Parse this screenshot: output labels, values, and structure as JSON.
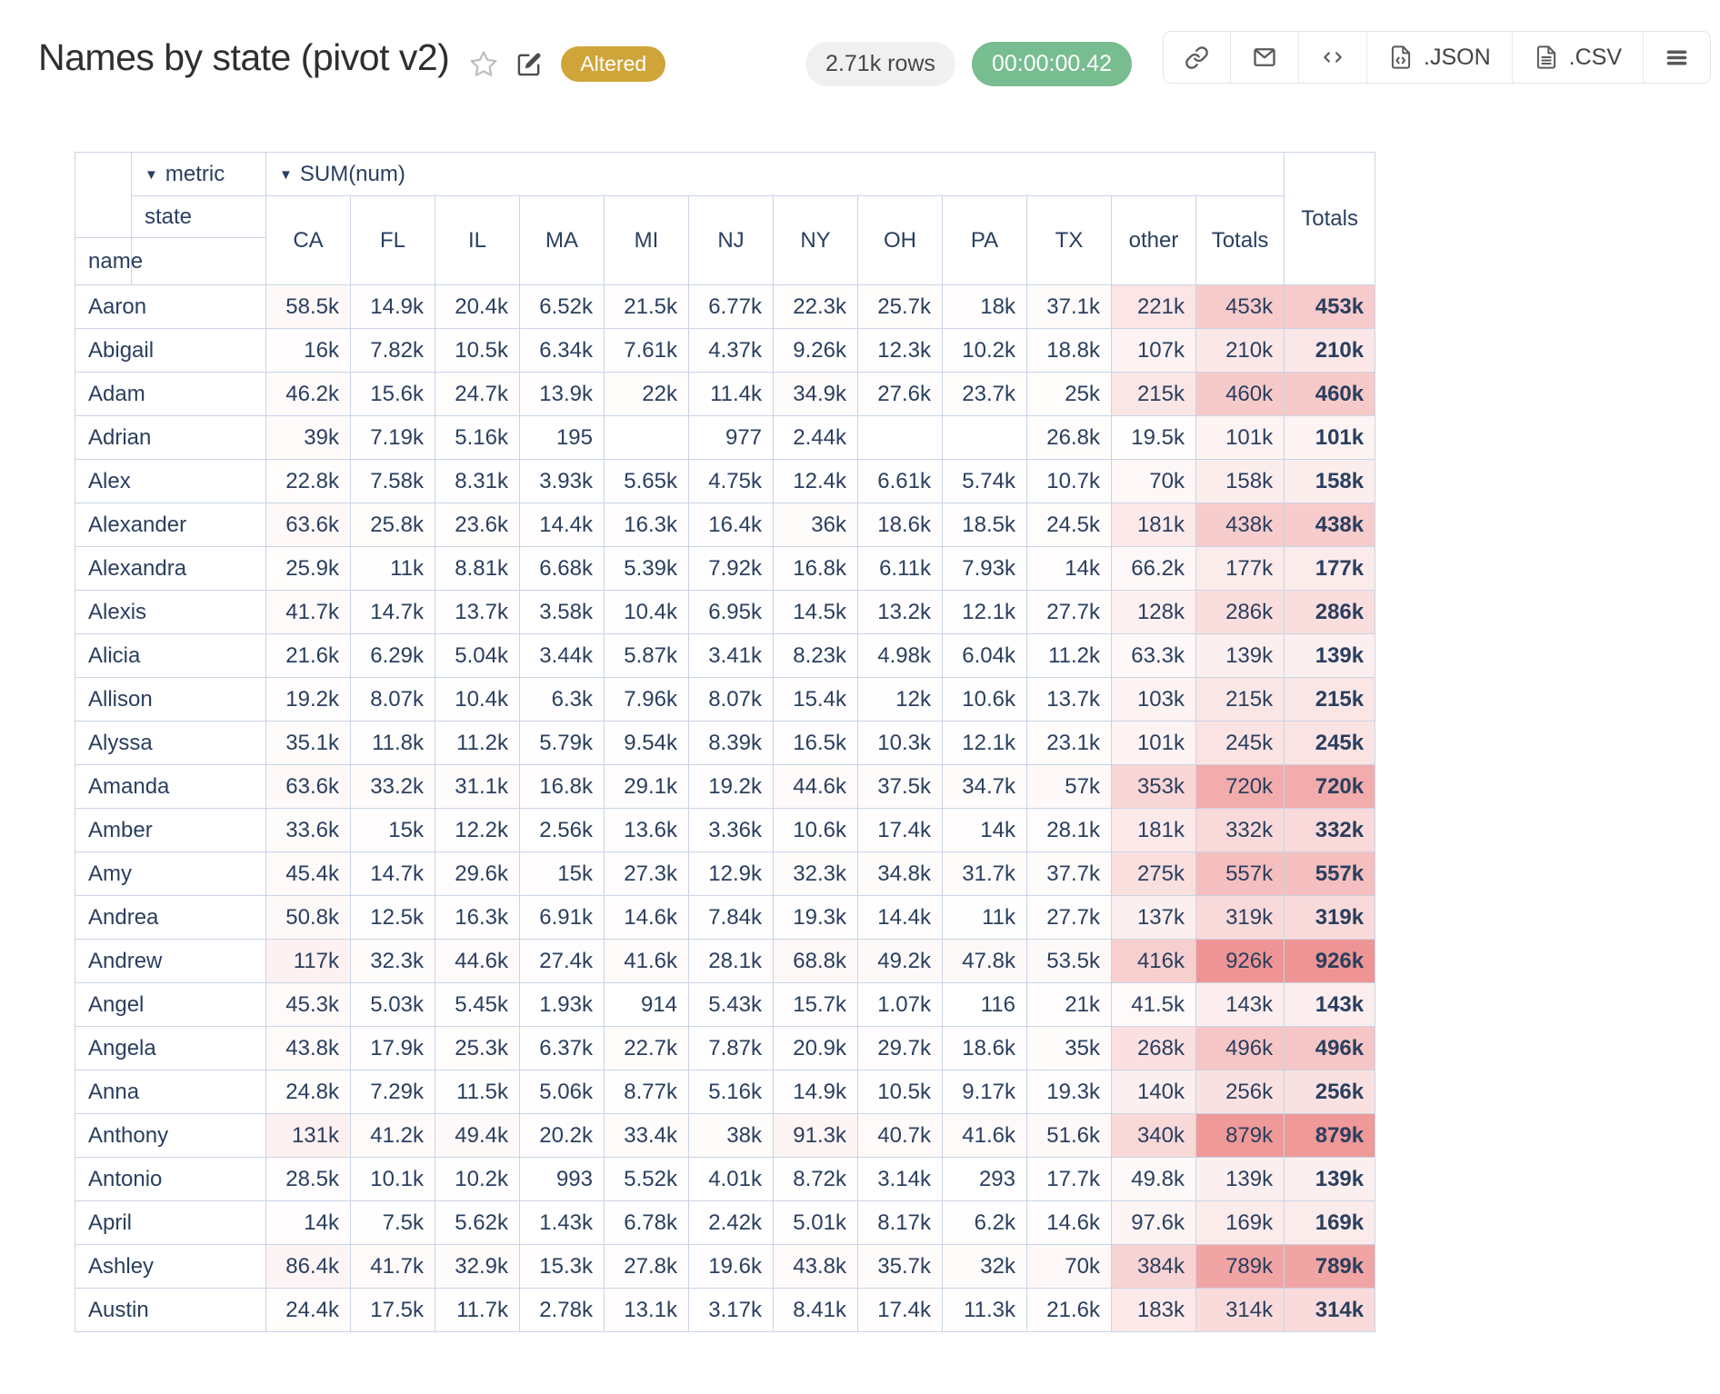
{
  "header": {
    "title": "Names by state (pivot v2)",
    "status_badge": "Altered",
    "rows_count": "2.71k rows",
    "duration": "00:00:00.42",
    "json_label": ".JSON",
    "csv_label": ".CSV"
  },
  "colors": {
    "heat_max": "#ee9494",
    "accent_gold": "#cfa53a",
    "accent_green": "#77bd90",
    "table_border": "#c9d4e4",
    "table_text": "#2a3f5f"
  },
  "pivot": {
    "dropdown_arrow": "▼",
    "metric_label": "metric",
    "aggregator_label": "SUM(num)",
    "state_label": "state",
    "name_label": "name",
    "totals_label": "Totals",
    "max_value": 926000,
    "columns": [
      "CA",
      "FL",
      "IL",
      "MA",
      "MI",
      "NJ",
      "NY",
      "OH",
      "PA",
      "TX",
      "other",
      "Totals"
    ],
    "rows": [
      {
        "name": "Aaron",
        "values": [
          "58.5k",
          "14.9k",
          "20.4k",
          "6.52k",
          "21.5k",
          "6.77k",
          "22.3k",
          "25.7k",
          "18k",
          "37.1k",
          "221k",
          "453k"
        ],
        "total": "453k"
      },
      {
        "name": "Abigail",
        "values": [
          "16k",
          "7.82k",
          "10.5k",
          "6.34k",
          "7.61k",
          "4.37k",
          "9.26k",
          "12.3k",
          "10.2k",
          "18.8k",
          "107k",
          "210k"
        ],
        "total": "210k"
      },
      {
        "name": "Adam",
        "values": [
          "46.2k",
          "15.6k",
          "24.7k",
          "13.9k",
          "22k",
          "11.4k",
          "34.9k",
          "27.6k",
          "23.7k",
          "25k",
          "215k",
          "460k"
        ],
        "total": "460k"
      },
      {
        "name": "Adrian",
        "values": [
          "39k",
          "7.19k",
          "5.16k",
          "195",
          "",
          "977",
          "2.44k",
          "",
          "",
          "26.8k",
          "19.5k",
          "101k"
        ],
        "total": "101k"
      },
      {
        "name": "Alex",
        "values": [
          "22.8k",
          "7.58k",
          "8.31k",
          "3.93k",
          "5.65k",
          "4.75k",
          "12.4k",
          "6.61k",
          "5.74k",
          "10.7k",
          "70k",
          "158k"
        ],
        "total": "158k"
      },
      {
        "name": "Alexander",
        "values": [
          "63.6k",
          "25.8k",
          "23.6k",
          "14.4k",
          "16.3k",
          "16.4k",
          "36k",
          "18.6k",
          "18.5k",
          "24.5k",
          "181k",
          "438k"
        ],
        "total": "438k"
      },
      {
        "name": "Alexandra",
        "values": [
          "25.9k",
          "11k",
          "8.81k",
          "6.68k",
          "5.39k",
          "7.92k",
          "16.8k",
          "6.11k",
          "7.93k",
          "14k",
          "66.2k",
          "177k"
        ],
        "total": "177k"
      },
      {
        "name": "Alexis",
        "values": [
          "41.7k",
          "14.7k",
          "13.7k",
          "3.58k",
          "10.4k",
          "6.95k",
          "14.5k",
          "13.2k",
          "12.1k",
          "27.7k",
          "128k",
          "286k"
        ],
        "total": "286k"
      },
      {
        "name": "Alicia",
        "values": [
          "21.6k",
          "6.29k",
          "5.04k",
          "3.44k",
          "5.87k",
          "3.41k",
          "8.23k",
          "4.98k",
          "6.04k",
          "11.2k",
          "63.3k",
          "139k"
        ],
        "total": "139k"
      },
      {
        "name": "Allison",
        "values": [
          "19.2k",
          "8.07k",
          "10.4k",
          "6.3k",
          "7.96k",
          "8.07k",
          "15.4k",
          "12k",
          "10.6k",
          "13.7k",
          "103k",
          "215k"
        ],
        "total": "215k"
      },
      {
        "name": "Alyssa",
        "values": [
          "35.1k",
          "11.8k",
          "11.2k",
          "5.79k",
          "9.54k",
          "8.39k",
          "16.5k",
          "10.3k",
          "12.1k",
          "23.1k",
          "101k",
          "245k"
        ],
        "total": "245k"
      },
      {
        "name": "Amanda",
        "values": [
          "63.6k",
          "33.2k",
          "31.1k",
          "16.8k",
          "29.1k",
          "19.2k",
          "44.6k",
          "37.5k",
          "34.7k",
          "57k",
          "353k",
          "720k"
        ],
        "total": "720k"
      },
      {
        "name": "Amber",
        "values": [
          "33.6k",
          "15k",
          "12.2k",
          "2.56k",
          "13.6k",
          "3.36k",
          "10.6k",
          "17.4k",
          "14k",
          "28.1k",
          "181k",
          "332k"
        ],
        "total": "332k"
      },
      {
        "name": "Amy",
        "values": [
          "45.4k",
          "14.7k",
          "29.6k",
          "15k",
          "27.3k",
          "12.9k",
          "32.3k",
          "34.8k",
          "31.7k",
          "37.7k",
          "275k",
          "557k"
        ],
        "total": "557k"
      },
      {
        "name": "Andrea",
        "values": [
          "50.8k",
          "12.5k",
          "16.3k",
          "6.91k",
          "14.6k",
          "7.84k",
          "19.3k",
          "14.4k",
          "11k",
          "27.7k",
          "137k",
          "319k"
        ],
        "total": "319k"
      },
      {
        "name": "Andrew",
        "values": [
          "117k",
          "32.3k",
          "44.6k",
          "27.4k",
          "41.6k",
          "28.1k",
          "68.8k",
          "49.2k",
          "47.8k",
          "53.5k",
          "416k",
          "926k"
        ],
        "total": "926k"
      },
      {
        "name": "Angel",
        "values": [
          "45.3k",
          "5.03k",
          "5.45k",
          "1.93k",
          "914",
          "5.43k",
          "15.7k",
          "1.07k",
          "116",
          "21k",
          "41.5k",
          "143k"
        ],
        "total": "143k"
      },
      {
        "name": "Angela",
        "values": [
          "43.8k",
          "17.9k",
          "25.3k",
          "6.37k",
          "22.7k",
          "7.87k",
          "20.9k",
          "29.7k",
          "18.6k",
          "35k",
          "268k",
          "496k"
        ],
        "total": "496k"
      },
      {
        "name": "Anna",
        "values": [
          "24.8k",
          "7.29k",
          "11.5k",
          "5.06k",
          "8.77k",
          "5.16k",
          "14.9k",
          "10.5k",
          "9.17k",
          "19.3k",
          "140k",
          "256k"
        ],
        "total": "256k"
      },
      {
        "name": "Anthony",
        "values": [
          "131k",
          "41.2k",
          "49.4k",
          "20.2k",
          "33.4k",
          "38k",
          "91.3k",
          "40.7k",
          "41.6k",
          "51.6k",
          "340k",
          "879k"
        ],
        "total": "879k"
      },
      {
        "name": "Antonio",
        "values": [
          "28.5k",
          "10.1k",
          "10.2k",
          "993",
          "5.52k",
          "4.01k",
          "8.72k",
          "3.14k",
          "293",
          "17.7k",
          "49.8k",
          "139k"
        ],
        "total": "139k"
      },
      {
        "name": "April",
        "values": [
          "14k",
          "7.5k",
          "5.62k",
          "1.43k",
          "6.78k",
          "2.42k",
          "5.01k",
          "8.17k",
          "6.2k",
          "14.6k",
          "97.6k",
          "169k"
        ],
        "total": "169k"
      },
      {
        "name": "Ashley",
        "values": [
          "86.4k",
          "41.7k",
          "32.9k",
          "15.3k",
          "27.8k",
          "19.6k",
          "43.8k",
          "35.7k",
          "32k",
          "70k",
          "384k",
          "789k"
        ],
        "total": "789k"
      },
      {
        "name": "Austin",
        "values": [
          "24.4k",
          "17.5k",
          "11.7k",
          "2.78k",
          "13.1k",
          "3.17k",
          "8.41k",
          "17.4k",
          "11.3k",
          "21.6k",
          "183k",
          "314k"
        ],
        "total": "314k"
      }
    ]
  }
}
